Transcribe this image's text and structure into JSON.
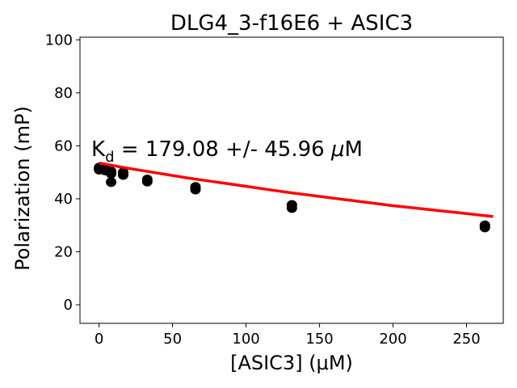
{
  "chart_data": {
    "type": "scatter",
    "title": "DLG4_3-f16E6 + ASIC3",
    "xlabel": "[ASIC3] (μM)",
    "ylabel": "Polarization (mP)",
    "xlim": [
      -13,
      275
    ],
    "ylim": [
      -7,
      101
    ],
    "xticks": [
      0,
      50,
      100,
      150,
      200,
      250
    ],
    "yticks": [
      0,
      20,
      40,
      60,
      80,
      100
    ],
    "annotation": {
      "prefix": "K",
      "subscript": "d",
      "value": " = 179.08 +/- 45.96 ",
      "mu": "μ",
      "unit": "M"
    },
    "points": [
      {
        "x": 0,
        "y": 51.5
      },
      {
        "x": 0,
        "y": 51.0
      },
      {
        "x": 0,
        "y": 51.8
      },
      {
        "x": 4.1,
        "y": 51.2
      },
      {
        "x": 4.1,
        "y": 50.7
      },
      {
        "x": 8.2,
        "y": 50.3
      },
      {
        "x": 8.2,
        "y": 49.5
      },
      {
        "x": 8.2,
        "y": 46.3
      },
      {
        "x": 16.4,
        "y": 50.0
      },
      {
        "x": 16.4,
        "y": 49.0
      },
      {
        "x": 32.8,
        "y": 47.3
      },
      {
        "x": 32.8,
        "y": 46.5
      },
      {
        "x": 65.6,
        "y": 44.5
      },
      {
        "x": 65.6,
        "y": 43.5
      },
      {
        "x": 131.2,
        "y": 37.7
      },
      {
        "x": 131.2,
        "y": 36.5
      },
      {
        "x": 262.5,
        "y": 30.0
      },
      {
        "x": 262.5,
        "y": 29.2
      }
    ],
    "fit": {
      "color": "#ff0000",
      "x": [
        0,
        10,
        20,
        30,
        40,
        50,
        60,
        70,
        80,
        90,
        100,
        110,
        120,
        130,
        140,
        150,
        160,
        170,
        180,
        190,
        200,
        210,
        220,
        230,
        240,
        250,
        260,
        268
      ],
      "y": [
        53.5,
        52.5,
        51.5,
        50.6,
        49.7,
        48.8,
        47.9,
        47.1,
        46.3,
        45.5,
        44.7,
        43.9,
        43.1,
        42.3,
        41.6,
        40.9,
        40.2,
        39.5,
        38.8,
        38.1,
        37.4,
        36.8,
        36.2,
        35.6,
        35.0,
        34.4,
        33.8,
        33.3
      ]
    },
    "marker_color": "#000000",
    "grid": false,
    "legend": "none"
  }
}
